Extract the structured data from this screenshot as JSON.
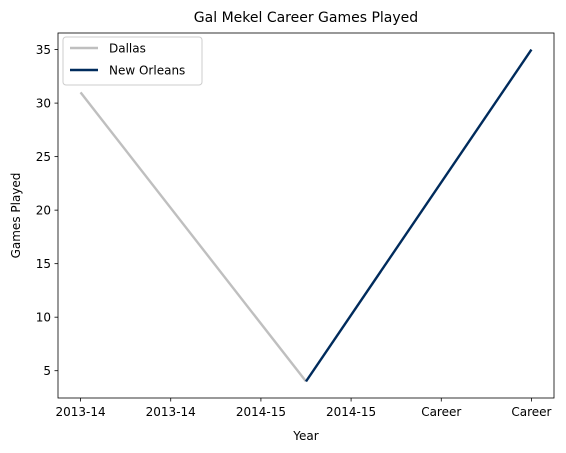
{
  "chart_data": {
    "type": "line",
    "title": "Gal Mekel Career Games Played",
    "xlabel": "Year",
    "ylabel": "Games Played",
    "x": [
      "2013-14",
      "2013-14",
      "2014-15",
      "2014-15",
      "Career",
      "Career"
    ],
    "ylim": [
      2.45,
      36.55
    ],
    "yticks": [
      5,
      10,
      15,
      20,
      25,
      30,
      35
    ],
    "grid": false,
    "legend_position": "top-left",
    "series": [
      {
        "name": "Dallas",
        "color": "#bfbfbf",
        "points": [
          [
            0,
            31
          ],
          [
            2.5,
            4
          ]
        ]
      },
      {
        "name": "New Orleans",
        "color": "#002b5c",
        "points": [
          [
            2.5,
            4
          ],
          [
            5,
            35
          ]
        ]
      }
    ]
  }
}
